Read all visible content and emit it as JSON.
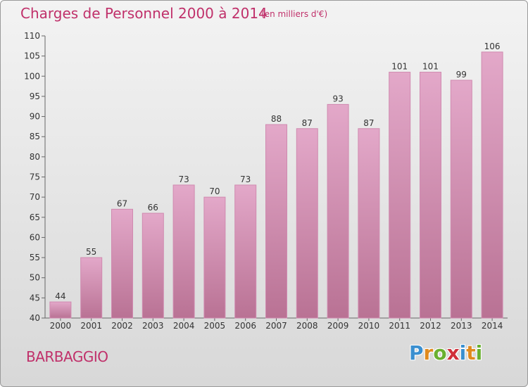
{
  "title": "Charges de Personnel 2000 à 2014",
  "subtitle": "(en milliers d'€)",
  "commune": "BARBAGGIO",
  "logo": {
    "text": "Proxiti",
    "letters": [
      {
        "ch": "P",
        "color": "#3a8fd0"
      },
      {
        "ch": "r",
        "color": "#e08a1e"
      },
      {
        "ch": "o",
        "color": "#6ab030"
      },
      {
        "ch": "x",
        "color": "#d0303a"
      },
      {
        "ch": "i",
        "color": "#3a8fd0"
      },
      {
        "ch": "t",
        "color": "#e08a1e"
      },
      {
        "ch": "i",
        "color": "#6ab030"
      }
    ]
  },
  "colors": {
    "accent": "#c0306a",
    "bar_top": "#e3a8c9",
    "bar_bottom": "#b97294",
    "bar_edge": "#d08ab0"
  },
  "chart_data": {
    "type": "bar",
    "title": "Charges de Personnel 2000 à 2014",
    "subtitle": "(en milliers d'€)",
    "categories": [
      "2000",
      "2001",
      "2002",
      "2003",
      "2004",
      "2005",
      "2006",
      "2007",
      "2008",
      "2009",
      "2010",
      "2011",
      "2012",
      "2013",
      "2014"
    ],
    "values": [
      44,
      55,
      67,
      66,
      73,
      70,
      73,
      88,
      87,
      93,
      87,
      101,
      101,
      99,
      106
    ],
    "ylim": [
      40,
      110
    ],
    "yticks": [
      40,
      45,
      50,
      55,
      60,
      65,
      70,
      75,
      80,
      85,
      90,
      95,
      100,
      105,
      110
    ],
    "grid": false,
    "data_labels": true
  }
}
